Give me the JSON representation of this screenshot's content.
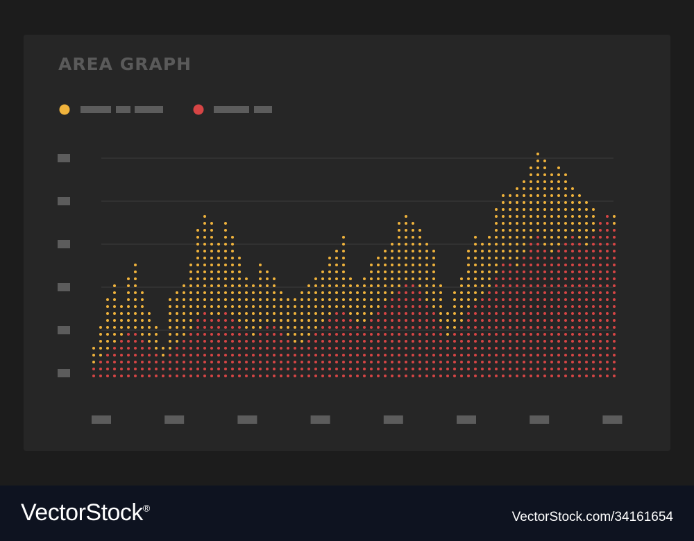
{
  "colors": {
    "page_bg": "#1c1c1c",
    "card_bg": "#262626",
    "title": "#5a5a5a",
    "gridline": "#3c3c3c",
    "placeholder": "#5c5c5c",
    "series_1": "#f0b33c",
    "series_2": "#d64545",
    "watermark_bg": "#0e1320",
    "watermark_text": "#ffffff"
  },
  "chart_data": {
    "type": "area",
    "title": "AREA GRAPH",
    "style": "dotted-area",
    "legend_placement": "top-left",
    "legend_placeholder_labels": true,
    "axis_tick_labels": "placeholder",
    "x_tick_count": 8,
    "y_tick_count": 6,
    "grid": "horizontal",
    "ylim": [
      0,
      32
    ],
    "x": [
      1,
      2,
      3,
      4,
      5,
      6,
      7,
      8,
      9,
      10,
      11,
      12,
      13,
      14,
      15,
      16,
      17,
      18,
      19,
      20,
      21,
      22,
      23,
      24,
      25,
      26,
      27,
      28,
      29,
      30,
      31,
      32,
      33,
      34,
      35,
      36,
      37,
      38,
      39,
      40,
      41,
      42,
      43,
      44,
      45,
      46,
      47,
      48,
      49,
      50,
      51,
      52,
      53,
      54,
      55,
      56,
      57,
      58,
      59,
      60,
      61,
      62,
      63,
      64,
      65,
      66,
      67,
      68,
      69,
      70,
      71,
      72,
      73,
      74,
      75,
      76
    ],
    "series": [
      {
        "color": "#f0b33c",
        "values": [
          4,
          7,
          11,
          13,
          10,
          14,
          16,
          12,
          9,
          7,
          4,
          11,
          12,
          13,
          16,
          21,
          23,
          22,
          19,
          22,
          20,
          17,
          14,
          13,
          16,
          15,
          14,
          12,
          11,
          11,
          12,
          13,
          14,
          15,
          17,
          18,
          20,
          14,
          13,
          14,
          16,
          17,
          18,
          19,
          22,
          23,
          22,
          21,
          19,
          18,
          13,
          9,
          12,
          14,
          18,
          20,
          19,
          20,
          24,
          26,
          26,
          27,
          28,
          30,
          32,
          31,
          29,
          30,
          29,
          27,
          26,
          25,
          24,
          22,
          23,
          23
        ]
      },
      {
        "color": "#d64545",
        "values": [
          1,
          2,
          3,
          4,
          5,
          6,
          6,
          5,
          4,
          3,
          2,
          3,
          4,
          5,
          6,
          8,
          9,
          8,
          8,
          9,
          8,
          7,
          6,
          5,
          6,
          7,
          7,
          6,
          5,
          4,
          4,
          5,
          6,
          7,
          8,
          9,
          9,
          8,
          7,
          7,
          8,
          9,
          10,
          11,
          12,
          13,
          13,
          12,
          10,
          9,
          7,
          5,
          6,
          7,
          9,
          10,
          11,
          12,
          14,
          16,
          16,
          15,
          17,
          19,
          20,
          18,
          17,
          18,
          19,
          20,
          19,
          18,
          20,
          22,
          23,
          21
        ]
      }
    ]
  },
  "watermark": {
    "logo": "VectorStock",
    "registered": "®",
    "url": "VectorStock.com/34161654"
  }
}
